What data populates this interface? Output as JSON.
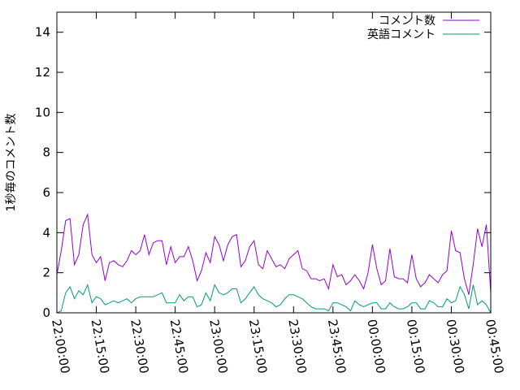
{
  "chart_data": {
    "type": "line",
    "title": "",
    "xlabel": "",
    "ylabel": "1秒毎のコメント数",
    "ylim": [
      0,
      15
    ],
    "yticks": [
      0,
      2,
      4,
      6,
      8,
      10,
      12,
      14
    ],
    "xlim": [
      "22:00:00",
      "00:45:00"
    ],
    "xticks": [
      "22:00:00",
      "22:15:00",
      "22:30:00",
      "22:45:00",
      "23:00:00",
      "23:15:00",
      "23:30:00",
      "23:45:00",
      "00:00:00",
      "00:15:00",
      "00:30:00",
      "00:45:00"
    ],
    "grid": false,
    "legend_position": "top-right",
    "series": [
      {
        "name": "コメント数",
        "color": "#9400d3",
        "points": [
          [
            "22:00:00",
            1.9
          ],
          [
            "22:01:40",
            3.1
          ],
          [
            "22:03:20",
            4.6
          ],
          [
            "22:05:00",
            4.7
          ],
          [
            "22:06:40",
            2.4
          ],
          [
            "22:08:20",
            2.9
          ],
          [
            "22:10:00",
            4.4
          ],
          [
            "22:11:40",
            4.9
          ],
          [
            "22:13:20",
            2.9
          ],
          [
            "22:15:00",
            2.5
          ],
          [
            "22:16:40",
            2.8
          ],
          [
            "22:18:20",
            1.6
          ],
          [
            "22:20:00",
            2.5
          ],
          [
            "22:21:40",
            2.6
          ],
          [
            "22:23:20",
            2.4
          ],
          [
            "22:25:00",
            2.3
          ],
          [
            "22:26:40",
            2.6
          ],
          [
            "22:28:20",
            3.1
          ],
          [
            "22:30:00",
            2.9
          ],
          [
            "22:31:40",
            3.1
          ],
          [
            "22:33:20",
            3.9
          ],
          [
            "22:35:00",
            2.9
          ],
          [
            "22:36:40",
            3.5
          ],
          [
            "22:38:20",
            3.6
          ],
          [
            "22:40:00",
            3.6
          ],
          [
            "22:41:40",
            2.4
          ],
          [
            "22:43:20",
            3.3
          ],
          [
            "22:45:00",
            2.5
          ],
          [
            "22:46:40",
            2.8
          ],
          [
            "22:48:20",
            2.8
          ],
          [
            "22:50:00",
            3.3
          ],
          [
            "22:51:40",
            2.6
          ],
          [
            "22:53:20",
            1.6
          ],
          [
            "22:55:00",
            2.1
          ],
          [
            "22:56:40",
            3.0
          ],
          [
            "22:58:20",
            2.5
          ],
          [
            "23:00:00",
            3.8
          ],
          [
            "23:01:40",
            3.4
          ],
          [
            "23:03:20",
            2.6
          ],
          [
            "23:05:00",
            3.4
          ],
          [
            "23:06:40",
            3.8
          ],
          [
            "23:08:20",
            3.9
          ],
          [
            "23:10:00",
            2.3
          ],
          [
            "23:11:40",
            2.6
          ],
          [
            "23:13:20",
            3.3
          ],
          [
            "23:15:00",
            3.6
          ],
          [
            "23:16:40",
            2.4
          ],
          [
            "23:18:20",
            2.2
          ],
          [
            "23:20:00",
            3.1
          ],
          [
            "23:21:40",
            2.7
          ],
          [
            "23:23:20",
            2.3
          ],
          [
            "23:25:00",
            2.4
          ],
          [
            "23:26:40",
            2.2
          ],
          [
            "23:28:20",
            2.7
          ],
          [
            "23:30:00",
            2.9
          ],
          [
            "23:31:40",
            3.1
          ],
          [
            "23:33:20",
            2.2
          ],
          [
            "23:35:00",
            2.1
          ],
          [
            "23:36:40",
            1.7
          ],
          [
            "23:38:20",
            1.7
          ],
          [
            "23:40:00",
            1.6
          ],
          [
            "23:41:40",
            1.7
          ],
          [
            "23:43:20",
            1.2
          ],
          [
            "23:45:00",
            2.4
          ],
          [
            "23:46:40",
            1.8
          ],
          [
            "23:48:20",
            1.9
          ],
          [
            "23:50:00",
            1.4
          ],
          [
            "23:51:40",
            1.6
          ],
          [
            "23:53:20",
            1.9
          ],
          [
            "23:55:00",
            1.6
          ],
          [
            "23:56:40",
            1.2
          ],
          [
            "23:58:20",
            2.0
          ],
          [
            "00:00:00",
            3.4
          ],
          [
            "00:01:40",
            2.2
          ],
          [
            "00:03:20",
            1.4
          ],
          [
            "00:05:00",
            1.6
          ],
          [
            "00:06:40",
            3.2
          ],
          [
            "00:08:20",
            1.8
          ],
          [
            "00:10:00",
            1.7
          ],
          [
            "00:11:40",
            1.7
          ],
          [
            "00:13:20",
            1.5
          ],
          [
            "00:15:00",
            2.9
          ],
          [
            "00:16:40",
            1.7
          ],
          [
            "00:18:20",
            1.3
          ],
          [
            "00:20:00",
            1.5
          ],
          [
            "00:21:40",
            1.9
          ],
          [
            "00:23:20",
            1.7
          ],
          [
            "00:25:00",
            1.5
          ],
          [
            "00:26:40",
            1.9
          ],
          [
            "00:28:20",
            2.1
          ],
          [
            "00:30:00",
            4.1
          ],
          [
            "00:31:40",
            3.1
          ],
          [
            "00:33:20",
            3.0
          ],
          [
            "00:35:00",
            1.7
          ],
          [
            "00:36:40",
            0.9
          ],
          [
            "00:38:20",
            2.4
          ],
          [
            "00:40:00",
            4.2
          ],
          [
            "00:41:40",
            3.3
          ],
          [
            "00:43:20",
            4.4
          ],
          [
            "00:45:00",
            1.0
          ]
        ]
      },
      {
        "name": "英語コメント",
        "color": "#009e73",
        "points": [
          [
            "22:00:00",
            0.0
          ],
          [
            "22:01:40",
            0.1
          ],
          [
            "22:03:20",
            1.0
          ],
          [
            "22:05:00",
            1.3
          ],
          [
            "22:06:40",
            0.7
          ],
          [
            "22:08:20",
            1.1
          ],
          [
            "22:10:00",
            0.9
          ],
          [
            "22:11:40",
            1.4
          ],
          [
            "22:13:20",
            0.5
          ],
          [
            "22:15:00",
            0.8
          ],
          [
            "22:16:40",
            0.7
          ],
          [
            "22:18:20",
            0.4
          ],
          [
            "22:20:00",
            0.5
          ],
          [
            "22:21:40",
            0.6
          ],
          [
            "22:23:20",
            0.5
          ],
          [
            "22:25:00",
            0.6
          ],
          [
            "22:26:40",
            0.7
          ],
          [
            "22:28:20",
            0.5
          ],
          [
            "22:30:00",
            0.7
          ],
          [
            "22:31:40",
            0.8
          ],
          [
            "22:33:20",
            0.8
          ],
          [
            "22:35:00",
            0.8
          ],
          [
            "22:36:40",
            0.8
          ],
          [
            "22:38:20",
            0.9
          ],
          [
            "22:40:00",
            1.0
          ],
          [
            "22:41:40",
            0.5
          ],
          [
            "22:43:20",
            0.5
          ],
          [
            "22:45:00",
            0.5
          ],
          [
            "22:46:40",
            0.9
          ],
          [
            "22:48:20",
            0.6
          ],
          [
            "22:50:00",
            0.8
          ],
          [
            "22:51:40",
            0.8
          ],
          [
            "22:53:20",
            0.3
          ],
          [
            "22:55:00",
            0.4
          ],
          [
            "22:56:40",
            1.0
          ],
          [
            "22:58:20",
            0.6
          ],
          [
            "23:00:00",
            1.4
          ],
          [
            "23:01:40",
            1.0
          ],
          [
            "23:03:20",
            0.9
          ],
          [
            "23:05:00",
            1.0
          ],
          [
            "23:06:40",
            1.2
          ],
          [
            "23:08:20",
            1.2
          ],
          [
            "23:10:00",
            0.5
          ],
          [
            "23:11:40",
            0.7
          ],
          [
            "23:13:20",
            1.0
          ],
          [
            "23:15:00",
            1.3
          ],
          [
            "23:16:40",
            0.9
          ],
          [
            "23:18:20",
            0.7
          ],
          [
            "23:20:00",
            0.6
          ],
          [
            "23:21:40",
            0.5
          ],
          [
            "23:23:20",
            0.3
          ],
          [
            "23:25:00",
            0.4
          ],
          [
            "23:26:40",
            0.7
          ],
          [
            "23:28:20",
            0.9
          ],
          [
            "23:30:00",
            0.9
          ],
          [
            "23:31:40",
            0.8
          ],
          [
            "23:33:20",
            0.7
          ],
          [
            "23:35:00",
            0.5
          ],
          [
            "23:36:40",
            0.3
          ],
          [
            "23:38:20",
            0.2
          ],
          [
            "23:40:00",
            0.2
          ],
          [
            "23:41:40",
            0.2
          ],
          [
            "23:43:20",
            0.1
          ],
          [
            "23:45:00",
            0.5
          ],
          [
            "23:46:40",
            0.5
          ],
          [
            "23:48:20",
            0.4
          ],
          [
            "23:50:00",
            0.3
          ],
          [
            "23:51:40",
            0.1
          ],
          [
            "23:53:20",
            0.6
          ],
          [
            "23:55:00",
            0.4
          ],
          [
            "23:56:40",
            0.3
          ],
          [
            "23:58:20",
            0.4
          ],
          [
            "00:00:00",
            0.5
          ],
          [
            "00:01:40",
            0.5
          ],
          [
            "00:03:20",
            0.2
          ],
          [
            "00:05:00",
            0.2
          ],
          [
            "00:06:40",
            0.5
          ],
          [
            "00:08:20",
            0.3
          ],
          [
            "00:10:00",
            0.2
          ],
          [
            "00:11:40",
            0.2
          ],
          [
            "00:13:20",
            0.3
          ],
          [
            "00:15:00",
            0.5
          ],
          [
            "00:16:40",
            0.5
          ],
          [
            "00:18:20",
            0.2
          ],
          [
            "00:20:00",
            0.2
          ],
          [
            "00:21:40",
            0.6
          ],
          [
            "00:23:20",
            0.5
          ],
          [
            "00:25:00",
            0.3
          ],
          [
            "00:26:40",
            0.3
          ],
          [
            "00:28:20",
            0.7
          ],
          [
            "00:30:00",
            0.5
          ],
          [
            "00:31:40",
            0.6
          ],
          [
            "00:33:20",
            1.3
          ],
          [
            "00:35:00",
            0.9
          ],
          [
            "00:36:40",
            0.2
          ],
          [
            "00:38:20",
            1.4
          ],
          [
            "00:40:00",
            0.4
          ],
          [
            "00:41:40",
            0.6
          ],
          [
            "00:43:20",
            0.4
          ],
          [
            "00:45:00",
            0.0
          ]
        ]
      }
    ]
  }
}
